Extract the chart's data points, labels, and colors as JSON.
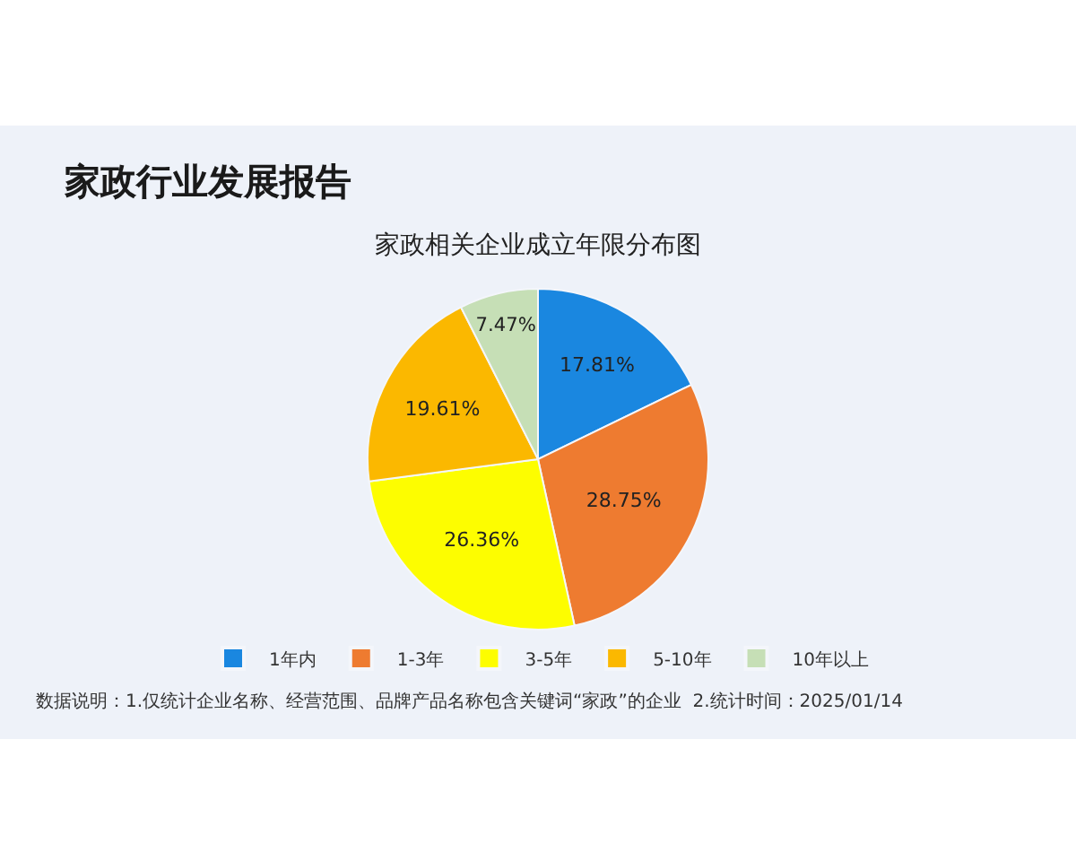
{
  "chart_data": {
    "type": "pie",
    "title": "家政行业发展报告",
    "subtitle": "家政相关企业成立年限分布图",
    "categories": [
      "1年内",
      "1-3年",
      "3-5年",
      "5-10年",
      "10年以上"
    ],
    "values": [
      17.81,
      28.75,
      26.36,
      19.61,
      7.47
    ],
    "value_labels": [
      "17.81%",
      "28.75%",
      "26.36%",
      "19.61%",
      "7.47%"
    ],
    "colors": [
      "#1a87e0",
      "#ee7b30",
      "#fdfd00",
      "#fbb800",
      "#c6dfb6"
    ],
    "legend": "bottom",
    "annotations": [
      "数据说明：1.仅统计企业名称、经营范围、品牌产品名称包含关键词“家政”的企业  2.统计时间：2025/01/14"
    ]
  }
}
